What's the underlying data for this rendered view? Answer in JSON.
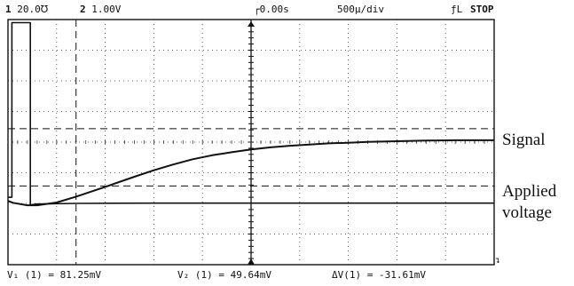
{
  "header": {
    "ch1_num": "1",
    "ch1_scale": "20.0℧",
    "ch2_num": "2",
    "ch2_scale": "1.00V",
    "delay": "0.00s",
    "timebase": "500µ/div",
    "trigger": "ƒL",
    "status": "STOP"
  },
  "footer": {
    "v1": "V₁ (1) = 81.25mV",
    "v2": "V₂ (1) = 49.64mV",
    "dv": "ΔV(1) = -31.61mV"
  },
  "chart_data": {
    "type": "line",
    "title": "",
    "xlabel": "",
    "ylabel": "",
    "grid": true,
    "divisions": {
      "x": 10,
      "y": 8
    },
    "xlim": [
      -2500,
      2500
    ],
    "x_unit": "µs",
    "series": [
      {
        "name": "Signal",
        "x": [
          -2500,
          -2450,
          -2300,
          -2200,
          -2000,
          -1800,
          -1500,
          -1200,
          -1000,
          -800,
          -600,
          -400,
          -200,
          0,
          200,
          400,
          600,
          800,
          1000,
          1200,
          1500,
          1800,
          2100,
          2500
        ],
        "values": [
          -1.92,
          -1.98,
          -2.06,
          -2.06,
          -1.97,
          -1.78,
          -1.46,
          -1.13,
          -0.92,
          -0.73,
          -0.56,
          -0.43,
          -0.33,
          -0.24,
          -0.17,
          -0.12,
          -0.08,
          -0.04,
          -0.02,
          0.01,
          0.03,
          0.05,
          0.06,
          0.06
        ]
      },
      {
        "name": "Applied voltage",
        "x": [
          -2500,
          -2460,
          -2460,
          -2270,
          -2270,
          -2200,
          -1800,
          -1000,
          0,
          1000,
          2000,
          2500
        ],
        "values": [
          -1.8,
          -1.8,
          3.9,
          3.9,
          -2.05,
          -2.02,
          -2.0,
          -1.99,
          -1.99,
          -1.99,
          -1.99,
          -1.99
        ]
      }
    ],
    "cursors": {
      "v1": 0.44,
      "v2": -1.43,
      "t1": -1800
    },
    "labels": [
      "Signal",
      "Applied voltage"
    ]
  }
}
